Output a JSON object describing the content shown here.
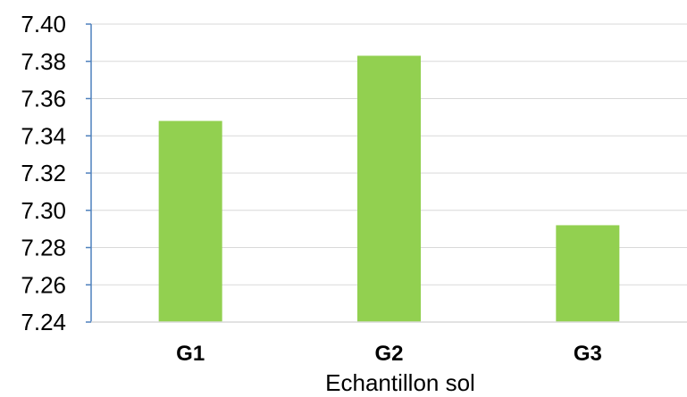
{
  "chart_data": {
    "type": "bar",
    "categories": [
      "G1",
      "G2",
      "G3"
    ],
    "values": [
      7.348,
      7.383,
      7.292
    ],
    "ylim": [
      7.24,
      7.4
    ],
    "yticks": [
      "7.24",
      "7.26",
      "7.28",
      "7.30",
      "7.32",
      "7.34",
      "7.36",
      "7.38",
      "7.40"
    ],
    "xlabel": "Echantillon sol",
    "ylabel": "",
    "grid": true,
    "colors": {
      "bar": "#92d050",
      "grid": "#d9d9d9",
      "axis": "#4f81bd"
    }
  }
}
